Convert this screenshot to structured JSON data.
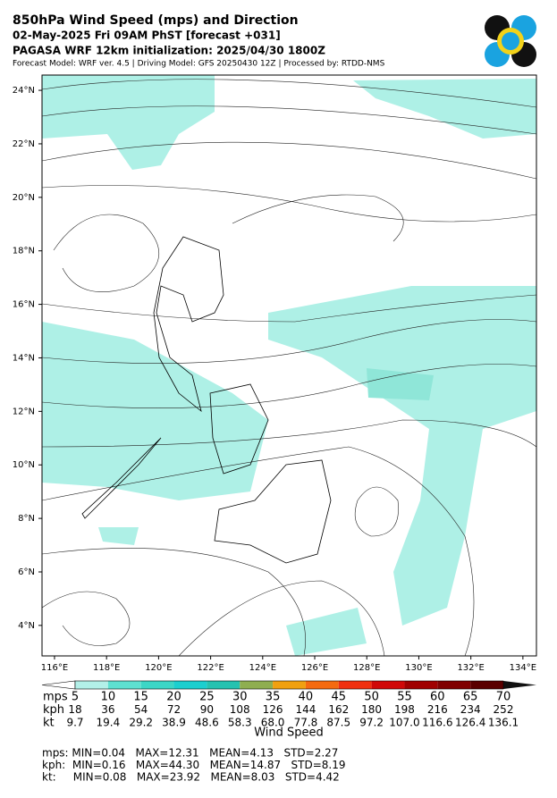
{
  "header": {
    "title": "850hPa Wind Speed (mps) and Direction",
    "subtitle": "02-May-2025 Fri 09AM PhST [forecast +031]",
    "init": "PAGASA WRF 12km initialization: 2025/04/30 1800Z",
    "model": "Forecast Model: WRF ver. 4.5 | Driving Model: GFS 20250430 12Z | Processed by: RTDD-NMS"
  },
  "map": {
    "lon_range": [
      115.52,
      134.52
    ],
    "lat_range": [
      2.86,
      24.57
    ],
    "lon_ticks": [
      {
        "value": 116,
        "label": "116°E"
      },
      {
        "value": 118,
        "label": "118°E"
      },
      {
        "value": 120,
        "label": "120°E"
      },
      {
        "value": 122,
        "label": "122°E"
      },
      {
        "value": 124,
        "label": "124°E"
      },
      {
        "value": 126,
        "label": "126°E"
      },
      {
        "value": 128,
        "label": "128°E"
      },
      {
        "value": 130,
        "label": "130°E"
      },
      {
        "value": 132,
        "label": "132°E"
      },
      {
        "value": 134,
        "label": "134°E"
      }
    ],
    "lat_ticks": [
      {
        "value": 4,
        "label": "4°N"
      },
      {
        "value": 6,
        "label": "6°N"
      },
      {
        "value": 8,
        "label": "8°N"
      },
      {
        "value": 10,
        "label": "10°N"
      },
      {
        "value": 12,
        "label": "12°N"
      },
      {
        "value": 14,
        "label": "14°N"
      },
      {
        "value": 16,
        "label": "16°N"
      },
      {
        "value": 18,
        "label": "18°N"
      },
      {
        "value": 20,
        "label": "20°N"
      },
      {
        "value": 22,
        "label": "22°N"
      },
      {
        "value": 24,
        "label": "24°N"
      }
    ]
  },
  "colorbar": {
    "colors": [
      "#b3f0e8",
      "#5ee0d0",
      "#3cd6c6",
      "#1ccfcf",
      "#26c2b0",
      "#8fae50",
      "#f0a010",
      "#f56a10",
      "#f03010",
      "#d00808",
      "#a00000",
      "#800000",
      "#5a0000",
      "#111111"
    ],
    "label": "Wind Speed",
    "rows": [
      {
        "unit": "mps",
        "values": [
          "5",
          "10",
          "15",
          "20",
          "25",
          "30",
          "35",
          "40",
          "45",
          "50",
          "55",
          "60",
          "65",
          "70"
        ]
      },
      {
        "unit": "kph",
        "values": [
          "18",
          "36",
          "54",
          "72",
          "90",
          "108",
          "126",
          "144",
          "162",
          "180",
          "198",
          "216",
          "234",
          "252"
        ]
      },
      {
        "unit": "kt",
        "values": [
          "9.7",
          "19.4",
          "29.2",
          "38.9",
          "48.6",
          "58.3",
          "68.0",
          "77.8",
          "87.5",
          "97.2",
          "107.0",
          "116.6",
          "126.4",
          "136.1"
        ]
      }
    ]
  },
  "stats": [
    "mps: MIN=0.04   MAX=12.31   MEAN=4.13   STD=2.27",
    "kph:  MIN=0.16   MAX=44.30   MEAN=14.87   STD=8.19",
    "kt:     MIN=0.08   MAX=23.92   MEAN=8.03   STD=4.42"
  ]
}
